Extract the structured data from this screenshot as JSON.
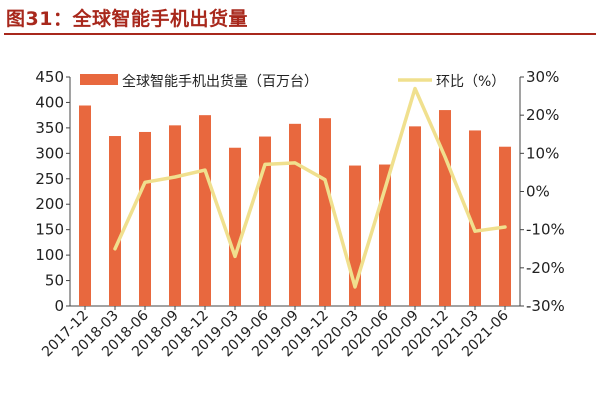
{
  "figure": {
    "title": "图31：全球智能手机出货量"
  },
  "colors": {
    "title": "#a8281c",
    "bar": "#e8683e",
    "line": "#f0e08e"
  },
  "chart_data": {
    "type": "bar+line",
    "categories": [
      "2017-12",
      "2018-03",
      "2018-06",
      "2018-09",
      "2018-12",
      "2019-03",
      "2019-06",
      "2019-09",
      "2019-12",
      "2020-03",
      "2020-06",
      "2020-09",
      "2020-12",
      "2021-03",
      "2021-06"
    ],
    "series": [
      {
        "name": "全球智能手机出货量（百万台）",
        "type": "bar",
        "axis": "left",
        "values": [
          394,
          334,
          342,
          355,
          375,
          311,
          333,
          358,
          369,
          276,
          278,
          353,
          385,
          345,
          313
        ]
      },
      {
        "name": "环比（%）",
        "type": "line",
        "axis": "right",
        "values": [
          null,
          -15,
          2.4,
          3.8,
          5.6,
          -17,
          7.1,
          7.5,
          3.1,
          -25,
          0.7,
          27,
          9.1,
          -10.4,
          -9.3
        ]
      }
    ],
    "y_left": {
      "min": 0,
      "max": 450,
      "step": 50
    },
    "y_right": {
      "min": -30,
      "max": 30,
      "step": 10,
      "unit": "%"
    },
    "legend": "top",
    "grid": false
  }
}
